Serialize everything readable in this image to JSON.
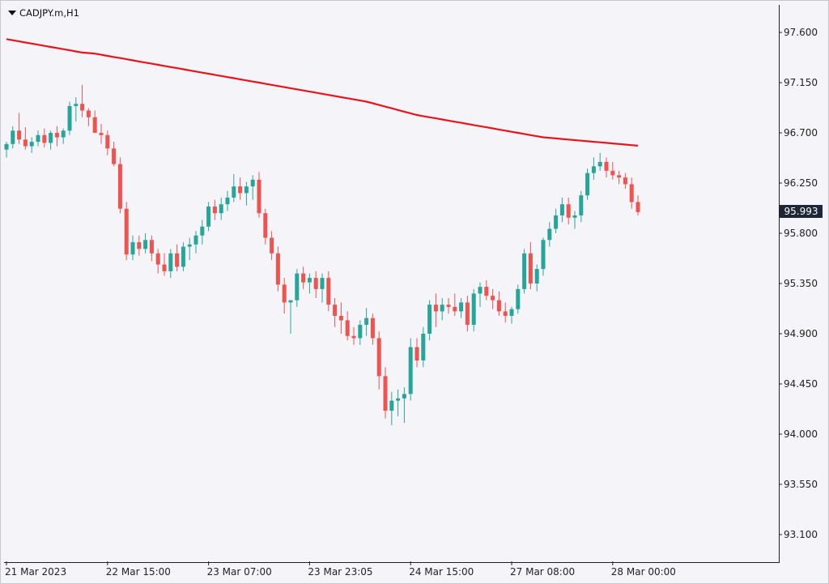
{
  "header": {
    "symbol": "CADJPY.m,H1"
  },
  "current_price": "95.993",
  "colors": {
    "bull": "#26a69a",
    "bear": "#ef5350",
    "ma": "#e8141c",
    "axis": "#202020",
    "background": "#f5f4f9"
  },
  "chart_data": {
    "type": "candlestick",
    "title": "CADJPY.m,H1",
    "ylim": [
      92.86,
      97.84
    ],
    "y_ticks": [
      "97.600",
      "97.150",
      "96.700",
      "96.250",
      "95.800",
      "95.350",
      "94.900",
      "94.450",
      "94.000",
      "93.550",
      "93.100"
    ],
    "x_ticks": [
      {
        "index": 0,
        "label": "21 Mar 2023"
      },
      {
        "index": 16,
        "label": "22 Mar 15:00"
      },
      {
        "index": 32,
        "label": "23 Mar 07:00"
      },
      {
        "index": 48,
        "label": "23 Mar 23:05"
      },
      {
        "index": 64,
        "label": "24 Mar 15:00"
      },
      {
        "index": 80,
        "label": "27 Mar 08:00"
      },
      {
        "index": 96,
        "label": "28 Mar 00:00"
      }
    ],
    "candles": [
      [
        96.55,
        96.62,
        96.48,
        96.6
      ],
      [
        96.6,
        96.76,
        96.56,
        96.72
      ],
      [
        96.72,
        96.88,
        96.6,
        96.64
      ],
      [
        96.64,
        96.75,
        96.55,
        96.58
      ],
      [
        96.58,
        96.66,
        96.52,
        96.62
      ],
      [
        96.62,
        96.72,
        96.58,
        96.68
      ],
      [
        96.68,
        96.74,
        96.57,
        96.61
      ],
      [
        96.61,
        96.72,
        96.55,
        96.7
      ],
      [
        96.7,
        96.76,
        96.58,
        96.66
      ],
      [
        96.66,
        96.74,
        96.6,
        96.72
      ],
      [
        96.72,
        96.98,
        96.68,
        96.94
      ],
      [
        96.94,
        97.02,
        96.8,
        96.96
      ],
      [
        96.96,
        97.13,
        96.84,
        96.9
      ],
      [
        96.9,
        96.92,
        96.76,
        96.84
      ],
      [
        96.84,
        96.9,
        96.7,
        96.7
      ],
      [
        96.7,
        96.78,
        96.6,
        96.68
      ],
      [
        96.68,
        96.72,
        96.5,
        96.56
      ],
      [
        96.56,
        96.62,
        96.4,
        96.42
      ],
      [
        96.42,
        96.48,
        95.98,
        96.02
      ],
      [
        96.02,
        96.08,
        95.56,
        95.61
      ],
      [
        95.61,
        95.78,
        95.56,
        95.72
      ],
      [
        95.72,
        95.78,
        95.6,
        95.66
      ],
      [
        95.66,
        95.8,
        95.62,
        95.74
      ],
      [
        95.74,
        95.78,
        95.55,
        95.62
      ],
      [
        95.62,
        95.66,
        95.44,
        95.52
      ],
      [
        95.52,
        95.62,
        95.42,
        95.46
      ],
      [
        95.46,
        95.66,
        95.4,
        95.62
      ],
      [
        95.62,
        95.7,
        95.46,
        95.5
      ],
      [
        95.5,
        95.72,
        95.46,
        95.68
      ],
      [
        95.68,
        95.76,
        95.56,
        95.7
      ],
      [
        95.7,
        95.82,
        95.62,
        95.78
      ],
      [
        95.78,
        95.92,
        95.7,
        95.86
      ],
      [
        95.86,
        96.08,
        95.82,
        96.04
      ],
      [
        96.04,
        96.1,
        95.92,
        95.98
      ],
      [
        95.98,
        96.12,
        95.92,
        96.06
      ],
      [
        96.06,
        96.18,
        96.0,
        96.12
      ],
      [
        96.12,
        96.33,
        96.08,
        96.22
      ],
      [
        96.22,
        96.3,
        96.1,
        96.16
      ],
      [
        96.16,
        96.26,
        96.05,
        96.22
      ],
      [
        96.22,
        96.32,
        96.1,
        96.28
      ],
      [
        96.28,
        96.35,
        95.94,
        95.98
      ],
      [
        95.98,
        96.02,
        95.7,
        95.76
      ],
      [
        95.76,
        95.82,
        95.56,
        95.62
      ],
      [
        95.62,
        95.68,
        95.28,
        95.34
      ],
      [
        95.34,
        95.4,
        95.08,
        95.18
      ],
      [
        95.18,
        95.2,
        94.9,
        95.2
      ],
      [
        95.2,
        95.48,
        95.14,
        95.44
      ],
      [
        95.44,
        95.5,
        95.3,
        95.36
      ],
      [
        95.36,
        95.44,
        95.26,
        95.4
      ],
      [
        95.4,
        95.46,
        95.22,
        95.3
      ],
      [
        95.3,
        95.44,
        95.18,
        95.4
      ],
      [
        95.4,
        95.46,
        95.1,
        95.16
      ],
      [
        95.16,
        95.22,
        94.96,
        95.06
      ],
      [
        95.06,
        95.18,
        94.9,
        95.02
      ],
      [
        95.02,
        95.1,
        94.84,
        94.88
      ],
      [
        94.88,
        94.96,
        94.8,
        94.86
      ],
      [
        94.86,
        95.02,
        94.8,
        94.98
      ],
      [
        94.98,
        95.13,
        94.88,
        95.04
      ],
      [
        95.04,
        95.08,
        94.8,
        94.86
      ],
      [
        94.86,
        94.92,
        94.4,
        94.52
      ],
      [
        94.52,
        94.6,
        94.14,
        94.21
      ],
      [
        94.21,
        94.38,
        94.08,
        94.3
      ],
      [
        94.3,
        94.4,
        94.16,
        94.32
      ],
      [
        94.32,
        94.42,
        94.1,
        94.36
      ],
      [
        94.36,
        94.86,
        94.3,
        94.78
      ],
      [
        94.78,
        94.86,
        94.6,
        94.66
      ],
      [
        94.66,
        94.96,
        94.6,
        94.9
      ],
      [
        94.9,
        95.2,
        94.84,
        95.16
      ],
      [
        95.16,
        95.26,
        94.96,
        95.1
      ],
      [
        95.1,
        95.22,
        95.02,
        95.16
      ],
      [
        95.16,
        95.22,
        95.08,
        95.14
      ],
      [
        95.14,
        95.26,
        95.06,
        95.1
      ],
      [
        95.1,
        95.22,
        95.04,
        95.18
      ],
      [
        95.18,
        95.24,
        94.92,
        94.98
      ],
      [
        94.98,
        95.3,
        94.92,
        95.26
      ],
      [
        95.26,
        95.36,
        95.14,
        95.32
      ],
      [
        95.32,
        95.38,
        95.2,
        95.24
      ],
      [
        95.24,
        95.3,
        95.12,
        95.2
      ],
      [
        95.2,
        95.28,
        95.06,
        95.1
      ],
      [
        95.1,
        95.18,
        95.0,
        95.06
      ],
      [
        95.06,
        95.14,
        94.99,
        95.12
      ],
      [
        95.12,
        95.34,
        95.08,
        95.3
      ],
      [
        95.3,
        95.66,
        95.26,
        95.62
      ],
      [
        95.62,
        95.72,
        95.3,
        95.35
      ],
      [
        95.35,
        95.52,
        95.28,
        95.48
      ],
      [
        95.48,
        95.76,
        95.42,
        95.74
      ],
      [
        95.74,
        95.9,
        95.68,
        95.84
      ],
      [
        95.84,
        96.02,
        95.8,
        95.96
      ],
      [
        95.96,
        96.12,
        95.9,
        96.06
      ],
      [
        96.06,
        96.12,
        95.88,
        95.94
      ],
      [
        95.94,
        96.0,
        95.84,
        95.96
      ],
      [
        95.96,
        96.18,
        95.9,
        96.14
      ],
      [
        96.14,
        96.38,
        96.1,
        96.34
      ],
      [
        96.34,
        96.48,
        96.28,
        96.4
      ],
      [
        96.4,
        96.52,
        96.36,
        96.44
      ],
      [
        96.44,
        96.48,
        96.3,
        96.36
      ],
      [
        96.36,
        96.44,
        96.28,
        96.32
      ],
      [
        96.32,
        96.36,
        96.24,
        96.3
      ],
      [
        96.3,
        96.34,
        96.2,
        96.24
      ],
      [
        96.24,
        96.3,
        96.02,
        96.08
      ],
      [
        96.08,
        96.14,
        95.96,
        95.99
      ]
    ],
    "moving_average": [
      97.54,
      97.53,
      97.52,
      97.51,
      97.5,
      97.49,
      97.48,
      97.47,
      97.46,
      97.45,
      97.44,
      97.43,
      97.42,
      97.415,
      97.41,
      97.4,
      97.39,
      97.38,
      97.37,
      97.36,
      97.35,
      97.34,
      97.33,
      97.32,
      97.31,
      97.3,
      97.29,
      97.28,
      97.27,
      97.26,
      97.25,
      97.24,
      97.23,
      97.22,
      97.21,
      97.2,
      97.19,
      97.18,
      97.17,
      97.16,
      97.15,
      97.14,
      97.13,
      97.12,
      97.11,
      97.1,
      97.09,
      97.08,
      97.07,
      97.06,
      97.05,
      97.04,
      97.03,
      97.02,
      97.01,
      97.0,
      96.99,
      96.98,
      96.965,
      96.95,
      96.935,
      96.92,
      96.905,
      96.89,
      96.875,
      96.86,
      96.85,
      96.84,
      96.83,
      96.82,
      96.81,
      96.8,
      96.79,
      96.78,
      96.77,
      96.76,
      96.75,
      96.74,
      96.73,
      96.72,
      96.71,
      96.7,
      96.69,
      96.68,
      96.67,
      96.66,
      96.655,
      96.65,
      96.645,
      96.64,
      96.635,
      96.63,
      96.625,
      96.62,
      96.615,
      96.61,
      96.605,
      96.6,
      96.595,
      96.59,
      96.585
    ]
  }
}
